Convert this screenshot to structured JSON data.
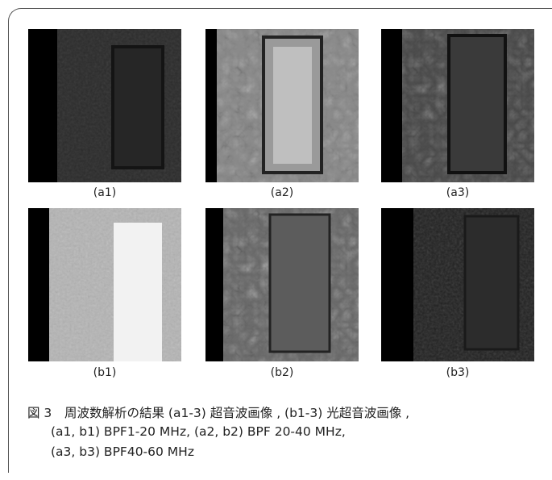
{
  "figure": {
    "panels": [
      {
        "label": "(a1)"
      },
      {
        "label": "(a2)"
      },
      {
        "label": "(a3)"
      },
      {
        "label": "(b1)"
      },
      {
        "label": "(b2)"
      },
      {
        "label": "(b3)"
      }
    ],
    "caption": {
      "number": "図 3",
      "lines": [
        "周波数解析の結果 (a1-3) 超音波画像 , (b1-3) 光超音波画像 ,",
        "(a1, b1) BPF1-20 MHz, (a2, b2) BPF 20-40 MHz,",
        "(a3, b3) BPF40-60 MHz"
      ]
    }
  }
}
